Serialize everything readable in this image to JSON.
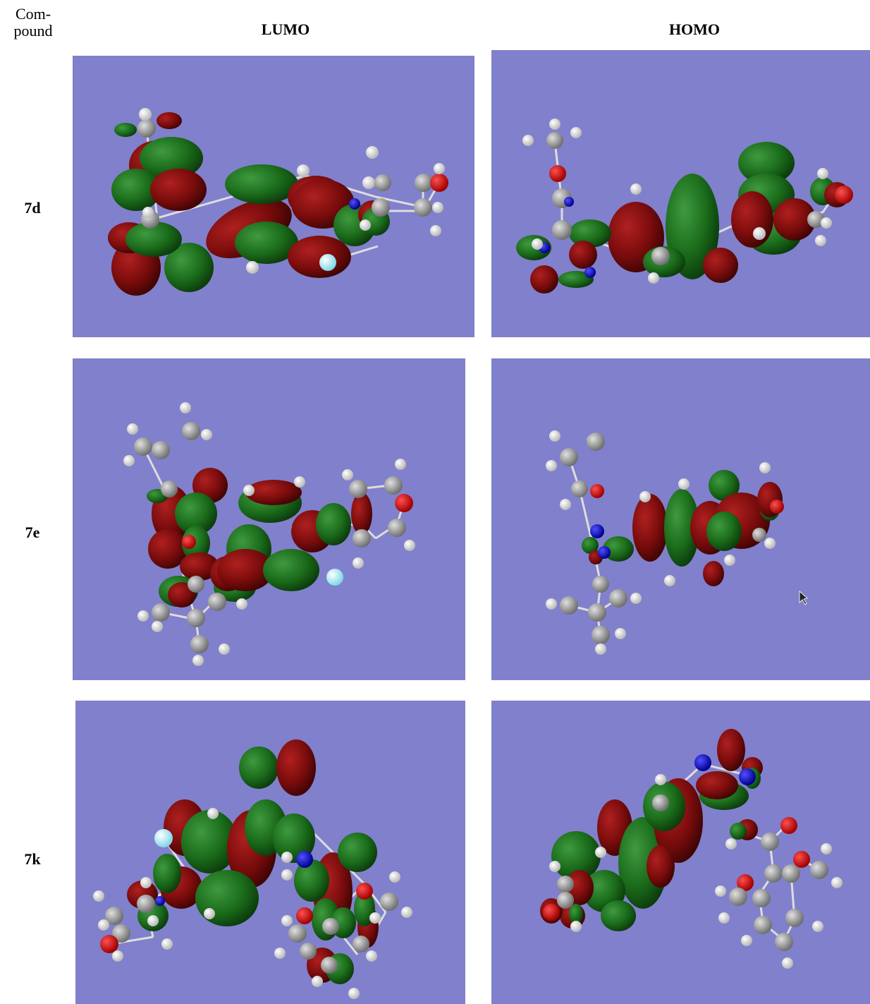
{
  "header": {
    "compound": "Com-\npound",
    "lumo": "LUMO",
    "homo": "HOMO"
  },
  "rows": [
    {
      "compound": "7d"
    },
    {
      "compound": "7e"
    },
    {
      "compound": "7k"
    }
  ],
  "colors": {
    "background": "#8080cc",
    "positive_lobe": "#1a6b1a",
    "negative_lobe": "#7a0c0c",
    "carbon": "#9a9a9a",
    "hydrogen": "#f2f2f2",
    "oxygen": "#e00000",
    "nitrogen": "#1010d0",
    "fluorine": "#b8f0f8"
  }
}
